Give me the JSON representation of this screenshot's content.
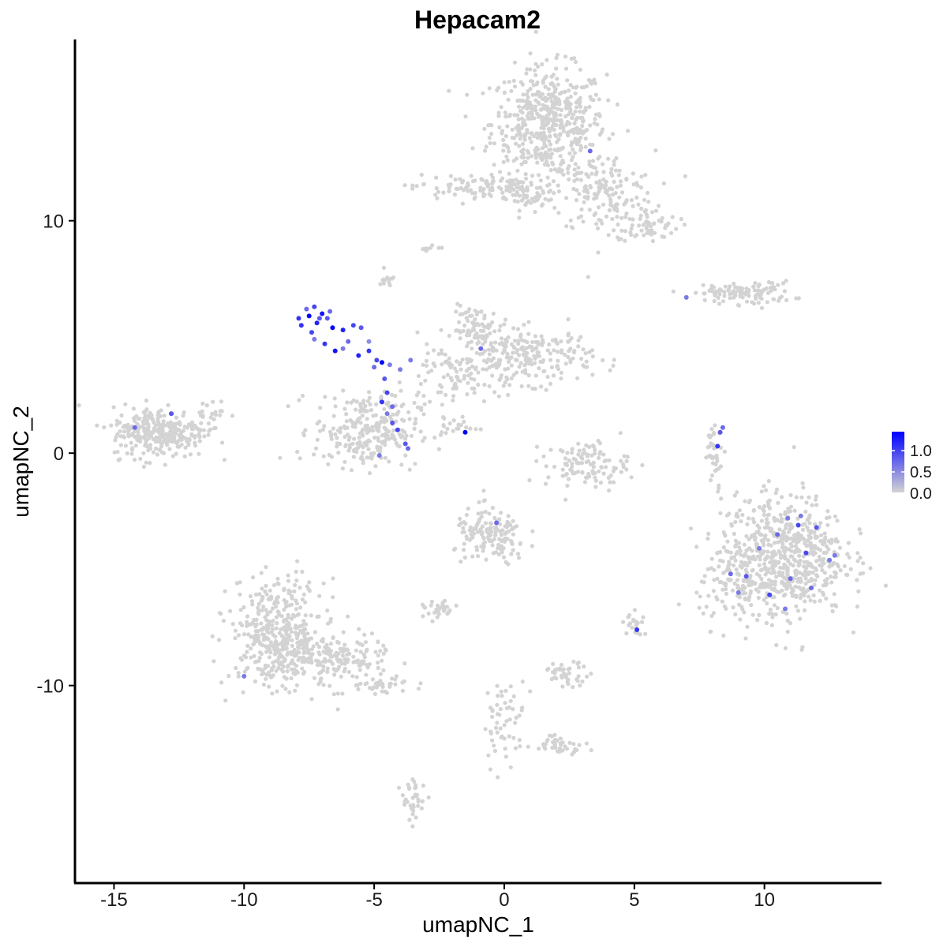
{
  "chart_data": {
    "type": "scatter",
    "title": "Hepacam2",
    "xlabel": "umapNC_1",
    "ylabel": "umapNC_2",
    "xlim": [
      -16.5,
      14.5
    ],
    "ylim": [
      -18.5,
      17.8
    ],
    "x_ticks": [
      -15,
      -10,
      -5,
      0,
      5,
      10
    ],
    "x_tick_labels": [
      "-15",
      "-10",
      "-5",
      "0",
      "5",
      "10"
    ],
    "y_ticks": [
      10,
      0,
      -10
    ],
    "y_tick_labels": [
      "10",
      "0",
      "-10"
    ],
    "grid": false,
    "colors": {
      "low": "#d3d3d3",
      "high": "#0000ff"
    },
    "legend": {
      "position": "right",
      "labels": [
        "1.0",
        "0.5",
        "0.0"
      ],
      "range": [
        0,
        1.2
      ]
    },
    "clusters": [
      {
        "cx": 1.7,
        "cy": 14.2,
        "sx": 1.1,
        "sy": 1.2,
        "n": 520
      },
      {
        "cx": 3.8,
        "cy": 11.2,
        "sx": 1.0,
        "sy": 0.9,
        "n": 150
      },
      {
        "cx": 5.5,
        "cy": 9.8,
        "sx": 0.6,
        "sy": 0.35,
        "n": 60
      },
      {
        "cx": -1.0,
        "cy": 11.4,
        "sx": 1.3,
        "sy": 0.3,
        "n": 110
      },
      {
        "cx": 1.0,
        "cy": 11.0,
        "sx": 0.8,
        "sy": 0.4,
        "n": 40
      },
      {
        "cx": 9.5,
        "cy": 6.9,
        "sx": 0.8,
        "sy": 0.25,
        "n": 90
      },
      {
        "cx": 8.0,
        "cy": 6.9,
        "sx": 0.5,
        "sy": 0.15,
        "n": 25
      },
      {
        "cx": -1.0,
        "cy": 5.3,
        "sx": 0.5,
        "sy": 0.5,
        "n": 80
      },
      {
        "cx": 1.2,
        "cy": 4.2,
        "sx": 1.1,
        "sy": 0.6,
        "n": 180
      },
      {
        "cx": -0.3,
        "cy": 4.0,
        "sx": 0.4,
        "sy": 0.6,
        "n": 40
      },
      {
        "cx": -2.0,
        "cy": 3.2,
        "sx": 0.9,
        "sy": 0.8,
        "n": 90
      },
      {
        "cx": -5.3,
        "cy": 1.0,
        "sx": 1.0,
        "sy": 0.8,
        "n": 260
      },
      {
        "cx": -13.3,
        "cy": 0.9,
        "sx": 0.9,
        "sy": 0.55,
        "n": 280
      },
      {
        "cx": -11.5,
        "cy": 1.6,
        "sx": 0.5,
        "sy": 0.4,
        "n": 30
      },
      {
        "cx": 3.2,
        "cy": -0.5,
        "sx": 0.8,
        "sy": 0.5,
        "n": 110
      },
      {
        "cx": 10.7,
        "cy": -4.4,
        "sx": 1.2,
        "sy": 1.3,
        "n": 650
      },
      {
        "cx": 9.0,
        "cy": -5.8,
        "sx": 0.8,
        "sy": 0.8,
        "n": 90
      },
      {
        "cx": -0.5,
        "cy": -3.6,
        "sx": 0.7,
        "sy": 0.6,
        "n": 150
      },
      {
        "cx": -8.7,
        "cy": -7.7,
        "sx": 0.9,
        "sy": 1.1,
        "n": 380
      },
      {
        "cx": -6.9,
        "cy": -8.9,
        "sx": 1.2,
        "sy": 0.6,
        "n": 200
      },
      {
        "cx": -4.5,
        "cy": -10.0,
        "sx": 0.5,
        "sy": 0.2,
        "n": 30
      },
      {
        "cx": -2.5,
        "cy": -6.8,
        "sx": 0.3,
        "sy": 0.2,
        "n": 30
      },
      {
        "cx": 2.4,
        "cy": -9.5,
        "sx": 0.45,
        "sy": 0.25,
        "n": 45
      },
      {
        "cx": 2.2,
        "cy": -12.5,
        "sx": 0.5,
        "sy": 0.2,
        "n": 40
      },
      {
        "cx": -3.5,
        "cy": -15.0,
        "sx": 0.25,
        "sy": 0.5,
        "n": 35
      },
      {
        "cx": 0.0,
        "cy": -11.5,
        "sx": 0.4,
        "sy": 0.9,
        "n": 55
      },
      {
        "cx": 8.1,
        "cy": 0.0,
        "sx": 0.2,
        "sy": 0.6,
        "n": 35
      },
      {
        "cx": 5.0,
        "cy": -7.3,
        "sx": 0.2,
        "sy": 0.3,
        "n": 20
      },
      {
        "cx": -1.8,
        "cy": 1.2,
        "sx": 0.4,
        "sy": 0.2,
        "n": 18
      },
      {
        "cx": -4.5,
        "cy": 7.5,
        "sx": 0.15,
        "sy": 0.2,
        "n": 12
      },
      {
        "cx": -2.8,
        "cy": 8.8,
        "sx": 0.2,
        "sy": 0.1,
        "n": 8
      }
    ],
    "expressing_cells": [
      {
        "x": -7.5,
        "y": 5.9,
        "v": 1.2
      },
      {
        "x": -7.2,
        "y": 5.6,
        "v": 1.0
      },
      {
        "x": -7.8,
        "y": 5.5,
        "v": 0.9
      },
      {
        "x": -7.0,
        "y": 6.0,
        "v": 1.1
      },
      {
        "x": -7.4,
        "y": 5.2,
        "v": 0.8
      },
      {
        "x": -6.8,
        "y": 5.8,
        "v": 0.7
      },
      {
        "x": -7.6,
        "y": 6.2,
        "v": 0.6
      },
      {
        "x": -6.6,
        "y": 5.4,
        "v": 1.2
      },
      {
        "x": -6.9,
        "y": 4.7,
        "v": 0.9
      },
      {
        "x": -7.3,
        "y": 4.9,
        "v": 0.5
      },
      {
        "x": -6.2,
        "y": 5.3,
        "v": 1.0
      },
      {
        "x": -5.8,
        "y": 5.5,
        "v": 0.8
      },
      {
        "x": -6.5,
        "y": 4.4,
        "v": 1.1
      },
      {
        "x": -6.0,
        "y": 4.8,
        "v": 0.6
      },
      {
        "x": -7.1,
        "y": 5.8,
        "v": 0.7
      },
      {
        "x": -7.9,
        "y": 5.8,
        "v": 0.9
      },
      {
        "x": -7.3,
        "y": 6.3,
        "v": 0.8
      },
      {
        "x": -6.7,
        "y": 6.1,
        "v": 0.6
      },
      {
        "x": -5.5,
        "y": 5.4,
        "v": 0.7
      },
      {
        "x": -6.2,
        "y": 4.5,
        "v": 0.5
      },
      {
        "x": -5.2,
        "y": 4.4,
        "v": 0.9
      },
      {
        "x": -5.6,
        "y": 4.2,
        "v": 1.0
      },
      {
        "x": -4.9,
        "y": 4.0,
        "v": 0.8
      },
      {
        "x": -4.7,
        "y": 3.9,
        "v": 1.2
      },
      {
        "x": -5.0,
        "y": 3.7,
        "v": 0.6
      },
      {
        "x": -4.4,
        "y": 3.8,
        "v": 0.5
      },
      {
        "x": -4.6,
        "y": 3.2,
        "v": 0.7
      },
      {
        "x": -4.5,
        "y": 2.6,
        "v": 0.8
      },
      {
        "x": -4.7,
        "y": 2.2,
        "v": 0.9
      },
      {
        "x": -4.3,
        "y": 2.0,
        "v": 0.6
      },
      {
        "x": -4.5,
        "y": 1.7,
        "v": 0.5
      },
      {
        "x": -4.3,
        "y": 1.3,
        "v": 0.7
      },
      {
        "x": -4.1,
        "y": 1.0,
        "v": 0.8
      },
      {
        "x": -3.8,
        "y": 0.4,
        "v": 0.7
      },
      {
        "x": -3.7,
        "y": 0.2,
        "v": 0.6
      },
      {
        "x": -4.0,
        "y": 3.6,
        "v": 0.5
      },
      {
        "x": -3.6,
        "y": 4.0,
        "v": 0.5
      },
      {
        "x": -4.8,
        "y": -0.1,
        "v": 0.5
      },
      {
        "x": -5.2,
        "y": 4.8,
        "v": 0.4
      },
      {
        "x": -1.5,
        "y": 0.9,
        "v": 1.2
      },
      {
        "x": -0.9,
        "y": 4.5,
        "v": 0.6
      },
      {
        "x": -14.2,
        "y": 1.1,
        "v": 0.6
      },
      {
        "x": -12.8,
        "y": 1.7,
        "v": 0.7
      },
      {
        "x": 3.3,
        "y": 13.0,
        "v": 0.6
      },
      {
        "x": 7.0,
        "y": 6.7,
        "v": 0.5
      },
      {
        "x": 8.3,
        "y": 0.9,
        "v": 0.7
      },
      {
        "x": 8.4,
        "y": 1.1,
        "v": 0.6
      },
      {
        "x": 8.2,
        "y": 0.3,
        "v": 0.9
      },
      {
        "x": -0.3,
        "y": -3.0,
        "v": 0.6
      },
      {
        "x": 5.1,
        "y": -7.6,
        "v": 0.9
      },
      {
        "x": 11.3,
        "y": -3.1,
        "v": 0.8
      },
      {
        "x": 12.0,
        "y": -3.2,
        "v": 0.7
      },
      {
        "x": 10.5,
        "y": -3.5,
        "v": 0.6
      },
      {
        "x": 11.6,
        "y": -4.3,
        "v": 0.8
      },
      {
        "x": 9.8,
        "y": -4.1,
        "v": 0.5
      },
      {
        "x": 11.0,
        "y": -5.4,
        "v": 0.6
      },
      {
        "x": 12.5,
        "y": -4.6,
        "v": 0.5
      },
      {
        "x": 9.3,
        "y": -5.3,
        "v": 0.7
      },
      {
        "x": 10.2,
        "y": -6.1,
        "v": 0.8
      },
      {
        "x": 11.8,
        "y": -5.8,
        "v": 0.6
      },
      {
        "x": 9.0,
        "y": -6.0,
        "v": 0.5
      },
      {
        "x": 10.8,
        "y": -6.7,
        "v": 0.5
      },
      {
        "x": 8.7,
        "y": -5.2,
        "v": 0.6
      },
      {
        "x": 12.7,
        "y": -4.4,
        "v": 0.5
      },
      {
        "x": 11.4,
        "y": -2.7,
        "v": 0.5
      },
      {
        "x": 10.9,
        "y": -2.8,
        "v": 0.5
      },
      {
        "x": -10.0,
        "y": -9.6,
        "v": 0.5
      }
    ]
  }
}
